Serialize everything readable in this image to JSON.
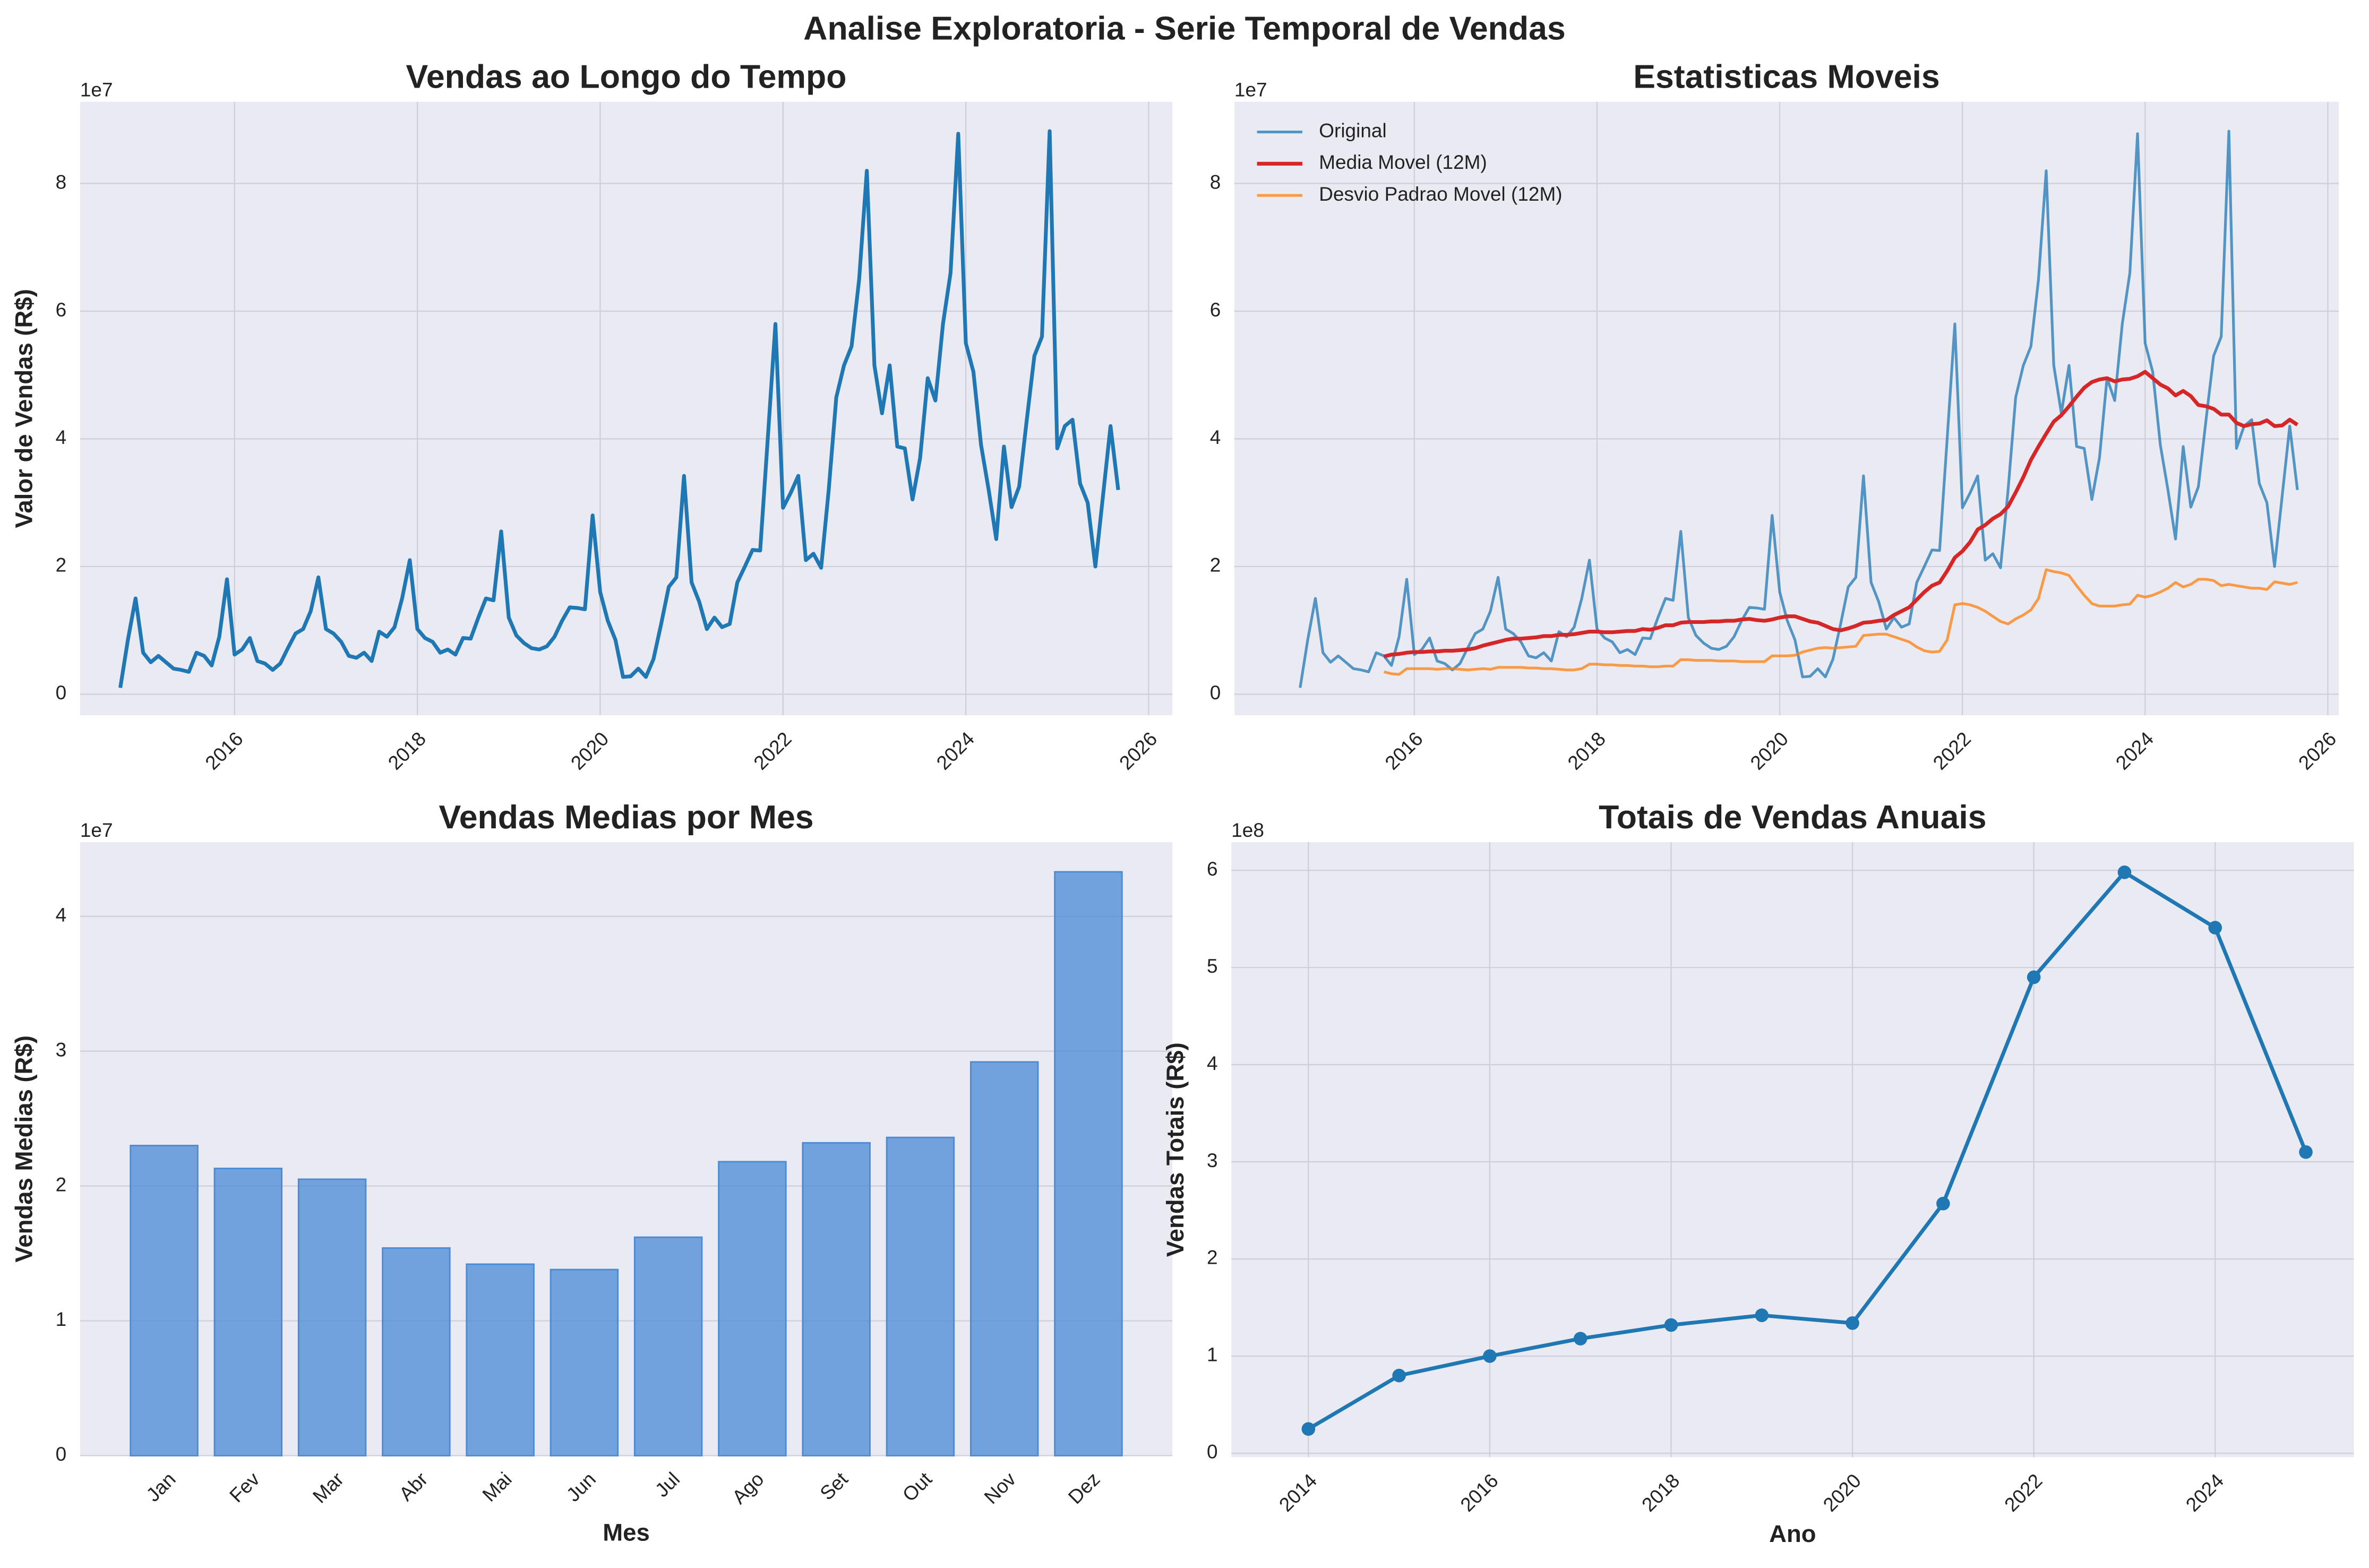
{
  "title": "Analise Exploratoria - Serie Temporal de Vendas",
  "chart_data": [
    {
      "type": "line",
      "title": "Vendas ao Longo do Tempo",
      "ylabel": "Valor de Vendas (R$)",
      "y_offset_label": "1e7",
      "x": [
        2014.75,
        2014.833,
        2014.917,
        2015,
        2015.083,
        2015.167,
        2015.25,
        2015.333,
        2015.417,
        2015.5,
        2015.583,
        2015.667,
        2015.75,
        2015.833,
        2015.917,
        2016,
        2016.083,
        2016.167,
        2016.25,
        2016.333,
        2016.417,
        2016.5,
        2016.583,
        2016.667,
        2016.75,
        2016.833,
        2016.917,
        2017,
        2017.083,
        2017.167,
        2017.25,
        2017.333,
        2017.417,
        2017.5,
        2017.583,
        2017.667,
        2017.75,
        2017.833,
        2017.917,
        2018,
        2018.083,
        2018.167,
        2018.25,
        2018.333,
        2018.417,
        2018.5,
        2018.583,
        2018.667,
        2018.75,
        2018.833,
        2018.917,
        2019,
        2019.083,
        2019.167,
        2019.25,
        2019.333,
        2019.417,
        2019.5,
        2019.583,
        2019.667,
        2019.75,
        2019.833,
        2019.917,
        2020,
        2020.083,
        2020.167,
        2020.25,
        2020.333,
        2020.417,
        2020.5,
        2020.583,
        2020.667,
        2020.75,
        2020.833,
        2020.917,
        2021,
        2021.083,
        2021.167,
        2021.25,
        2021.333,
        2021.417,
        2021.5,
        2021.583,
        2021.667,
        2021.75,
        2021.833,
        2021.917,
        2022,
        2022.083,
        2022.167,
        2022.25,
        2022.333,
        2022.417,
        2022.5,
        2022.583,
        2022.667,
        2022.75,
        2022.833,
        2022.917,
        2023,
        2023.083,
        2023.167,
        2023.25,
        2023.333,
        2023.417,
        2023.5,
        2023.583,
        2023.667,
        2023.75,
        2023.833,
        2023.917,
        2024,
        2024.083,
        2024.167,
        2024.25,
        2024.333,
        2024.417,
        2024.5,
        2024.583,
        2024.667,
        2024.75,
        2024.833,
        2024.917,
        2025,
        2025.083,
        2025.167,
        2025.25,
        2025.333,
        2025.417,
        2025.5,
        2025.583,
        2025.667
      ],
      "series": [
        {
          "name": "Vendas",
          "color": "#1f77b4",
          "values": [
            0.1,
            0.85,
            1.5,
            0.65,
            0.5,
            0.6,
            0.5,
            0.4,
            0.38,
            0.35,
            0.65,
            0.6,
            0.45,
            0.9,
            1.8,
            0.62,
            0.7,
            0.88,
            0.52,
            0.48,
            0.38,
            0.48,
            0.72,
            0.95,
            1.02,
            1.3,
            1.83,
            1.02,
            0.95,
            0.82,
            0.6,
            0.57,
            0.65,
            0.52,
            0.98,
            0.9,
            1.05,
            1.5,
            2.1,
            1.02,
            0.88,
            0.82,
            0.65,
            0.7,
            0.62,
            0.88,
            0.87,
            1.2,
            1.5,
            1.47,
            2.55,
            1.2,
            0.92,
            0.8,
            0.72,
            0.7,
            0.75,
            0.9,
            1.15,
            1.36,
            1.35,
            1.33,
            2.8,
            1.6,
            1.15,
            0.85,
            0.27,
            0.28,
            0.4,
            0.27,
            0.55,
            1.1,
            1.68,
            1.83,
            3.42,
            1.75,
            1.45,
            1.02,
            1.2,
            1.05,
            1.1,
            1.75,
            2.0,
            2.26,
            2.25,
            4.0,
            5.8,
            2.92,
            3.15,
            3.42,
            2.1,
            2.2,
            1.98,
            3.2,
            4.65,
            5.15,
            5.45,
            6.5,
            8.2,
            5.15,
            4.4,
            5.15,
            3.88,
            3.85,
            3.05,
            3.7,
            4.95,
            4.6,
            5.8,
            6.6,
            8.78,
            5.5,
            5.05,
            3.9,
            3.2,
            2.43,
            3.88,
            2.93,
            3.25,
            4.3,
            5.3,
            5.6,
            8.82,
            3.85,
            4.2,
            4.3,
            3.3,
            3.0,
            2.0,
            3.1,
            4.2,
            3.2
          ]
        }
      ],
      "xlim": [
        2014.31,
        2026.26
      ],
      "ylim": [
        -0.33,
        9.28
      ],
      "xticks": [
        2016,
        2018,
        2020,
        2022,
        2024,
        2026
      ],
      "yticks": [
        0,
        2,
        4,
        6,
        8
      ],
      "grid": true
    },
    {
      "type": "line",
      "title": "Estatisticas Moveis",
      "y_offset_label": "1e7",
      "legend": "upper left",
      "x": [
        2014.75,
        2014.833,
        2014.917,
        2015,
        2015.083,
        2015.167,
        2015.25,
        2015.333,
        2015.417,
        2015.5,
        2015.583,
        2015.667,
        2015.75,
        2015.833,
        2015.917,
        2016,
        2016.083,
        2016.167,
        2016.25,
        2016.333,
        2016.417,
        2016.5,
        2016.583,
        2016.667,
        2016.75,
        2016.833,
        2016.917,
        2017,
        2017.083,
        2017.167,
        2017.25,
        2017.333,
        2017.417,
        2017.5,
        2017.583,
        2017.667,
        2017.75,
        2017.833,
        2017.917,
        2018,
        2018.083,
        2018.167,
        2018.25,
        2018.333,
        2018.417,
        2018.5,
        2018.583,
        2018.667,
        2018.75,
        2018.833,
        2018.917,
        2019,
        2019.083,
        2019.167,
        2019.25,
        2019.333,
        2019.417,
        2019.5,
        2019.583,
        2019.667,
        2019.75,
        2019.833,
        2019.917,
        2020,
        2020.083,
        2020.167,
        2020.25,
        2020.333,
        2020.417,
        2020.5,
        2020.583,
        2020.667,
        2020.75,
        2020.833,
        2020.917,
        2021,
        2021.083,
        2021.167,
        2021.25,
        2021.333,
        2021.417,
        2021.5,
        2021.583,
        2021.667,
        2021.75,
        2021.833,
        2021.917,
        2022,
        2022.083,
        2022.167,
        2022.25,
        2022.333,
        2022.417,
        2022.5,
        2022.583,
        2022.667,
        2022.75,
        2022.833,
        2022.917,
        2023,
        2023.083,
        2023.167,
        2023.25,
        2023.333,
        2023.417,
        2023.5,
        2023.583,
        2023.667,
        2023.75,
        2023.833,
        2023.917,
        2024,
        2024.083,
        2024.167,
        2024.25,
        2024.333,
        2024.417,
        2024.5,
        2024.583,
        2024.667,
        2024.75,
        2024.833,
        2024.917,
        2025,
        2025.083,
        2025.167,
        2025.25,
        2025.333,
        2025.417,
        2025.5,
        2025.583,
        2025.667
      ],
      "series": [
        {
          "name": "Original",
          "color": "#1f77b4",
          "values": [
            0.1,
            0.85,
            1.5,
            0.65,
            0.5,
            0.6,
            0.5,
            0.4,
            0.38,
            0.35,
            0.65,
            0.6,
            0.45,
            0.9,
            1.8,
            0.62,
            0.7,
            0.88,
            0.52,
            0.48,
            0.38,
            0.48,
            0.72,
            0.95,
            1.02,
            1.3,
            1.83,
            1.02,
            0.95,
            0.82,
            0.6,
            0.57,
            0.65,
            0.52,
            0.98,
            0.9,
            1.05,
            1.5,
            2.1,
            1.02,
            0.88,
            0.82,
            0.65,
            0.7,
            0.62,
            0.88,
            0.87,
            1.2,
            1.5,
            1.47,
            2.55,
            1.2,
            0.92,
            0.8,
            0.72,
            0.7,
            0.75,
            0.9,
            1.15,
            1.36,
            1.35,
            1.33,
            2.8,
            1.6,
            1.15,
            0.85,
            0.27,
            0.28,
            0.4,
            0.27,
            0.55,
            1.1,
            1.68,
            1.83,
            3.42,
            1.75,
            1.45,
            1.02,
            1.2,
            1.05,
            1.1,
            1.75,
            2.0,
            2.26,
            2.25,
            4.0,
            5.8,
            2.92,
            3.15,
            3.42,
            2.1,
            2.2,
            1.98,
            3.2,
            4.65,
            5.15,
            5.45,
            6.5,
            8.2,
            5.15,
            4.4,
            5.15,
            3.88,
            3.85,
            3.05,
            3.7,
            4.95,
            4.6,
            5.8,
            6.6,
            8.78,
            5.5,
            5.05,
            3.9,
            3.2,
            2.43,
            3.88,
            2.93,
            3.25,
            4.3,
            5.3,
            5.6,
            8.82,
            3.85,
            4.2,
            4.3,
            3.3,
            3.0,
            2.0,
            3.1,
            4.2,
            3.2
          ]
        },
        {
          "name": "Media Movel (12M)",
          "color": "#d62728",
          "values": [
            null,
            null,
            null,
            null,
            null,
            null,
            null,
            null,
            null,
            null,
            null,
            0.59,
            0.62,
            0.63,
            0.65,
            0.66,
            0.66,
            0.67,
            0.67,
            0.68,
            0.68,
            0.69,
            0.7,
            0.72,
            0.76,
            0.79,
            0.82,
            0.85,
            0.87,
            0.87,
            0.88,
            0.89,
            0.91,
            0.91,
            0.93,
            0.93,
            0.94,
            0.96,
            0.98,
            0.98,
            0.97,
            0.97,
            0.98,
            0.99,
            0.99,
            1.02,
            1.01,
            1.04,
            1.08,
            1.08,
            1.12,
            1.13,
            1.13,
            1.13,
            1.14,
            1.14,
            1.15,
            1.15,
            1.17,
            1.18,
            1.16,
            1.15,
            1.17,
            1.2,
            1.22,
            1.22,
            1.18,
            1.14,
            1.12,
            1.07,
            1.02,
            1.0,
            1.03,
            1.07,
            1.12,
            1.13,
            1.15,
            1.16,
            1.24,
            1.3,
            1.36,
            1.48,
            1.6,
            1.7,
            1.75,
            1.93,
            2.14,
            2.24,
            2.38,
            2.58,
            2.65,
            2.75,
            2.82,
            2.94,
            3.16,
            3.4,
            3.67,
            3.88,
            4.08,
            4.27,
            4.37,
            4.51,
            4.66,
            4.8,
            4.89,
            4.93,
            4.95,
            4.9,
            4.93,
            4.94,
            4.98,
            5.05,
            4.95,
            4.85,
            4.79,
            4.68,
            4.75,
            4.67,
            4.53,
            4.51,
            4.47,
            4.38,
            4.38,
            4.25,
            4.2,
            4.23,
            4.24,
            4.29,
            4.2,
            4.21,
            4.3,
            4.22
          ]
        },
        {
          "name": "Desvio Padrao Movel (12M)",
          "color": "#ff7f0e",
          "values": [
            null,
            null,
            null,
            null,
            null,
            null,
            null,
            null,
            null,
            null,
            null,
            0.35,
            0.32,
            0.31,
            0.4,
            0.4,
            0.4,
            0.4,
            0.39,
            0.4,
            0.4,
            0.39,
            0.38,
            0.39,
            0.4,
            0.39,
            0.42,
            0.42,
            0.42,
            0.42,
            0.41,
            0.41,
            0.4,
            0.4,
            0.39,
            0.38,
            0.38,
            0.4,
            0.47,
            0.47,
            0.46,
            0.46,
            0.45,
            0.45,
            0.44,
            0.44,
            0.43,
            0.43,
            0.44,
            0.44,
            0.54,
            0.54,
            0.53,
            0.53,
            0.53,
            0.52,
            0.52,
            0.52,
            0.51,
            0.51,
            0.51,
            0.51,
            0.6,
            0.6,
            0.6,
            0.61,
            0.66,
            0.69,
            0.72,
            0.73,
            0.72,
            0.73,
            0.74,
            0.75,
            0.92,
            0.93,
            0.94,
            0.94,
            0.9,
            0.86,
            0.82,
            0.74,
            0.68,
            0.66,
            0.67,
            0.85,
            1.4,
            1.42,
            1.4,
            1.36,
            1.3,
            1.22,
            1.14,
            1.1,
            1.18,
            1.24,
            1.32,
            1.5,
            1.95,
            1.92,
            1.9,
            1.86,
            1.7,
            1.55,
            1.42,
            1.38,
            1.38,
            1.38,
            1.4,
            1.41,
            1.55,
            1.52,
            1.55,
            1.6,
            1.66,
            1.75,
            1.68,
            1.72,
            1.8,
            1.8,
            1.78,
            1.7,
            1.72,
            1.7,
            1.68,
            1.66,
            1.66,
            1.64,
            1.76,
            1.74,
            1.72,
            1.75
          ]
        }
      ],
      "xlim": [
        2014.03,
        2026.12
      ],
      "ylim": [
        -0.33,
        9.28
      ],
      "xticks": [
        2016,
        2018,
        2020,
        2022,
        2024,
        2026
      ],
      "yticks": [
        0,
        2,
        4,
        6,
        8
      ],
      "grid": true
    },
    {
      "type": "bar",
      "title": "Vendas Medias por Mes",
      "xlabel": "Mes",
      "ylabel": "Vendas Medias (R$)",
      "y_offset_label": "1e7",
      "categories": [
        "Jan",
        "Fev",
        "Mar",
        "Abr",
        "Mai",
        "Jun",
        "Jul",
        "Ago",
        "Set",
        "Out",
        "Nov",
        "Dez"
      ],
      "values": [
        2.3,
        2.13,
        2.05,
        1.54,
        1.42,
        1.38,
        1.62,
        2.18,
        2.32,
        2.36,
        2.92,
        4.33
      ],
      "color": "#4a8ad6",
      "ylim": [
        0,
        4.55
      ],
      "yticks": [
        0,
        1,
        2,
        3,
        4
      ],
      "grid": true
    },
    {
      "type": "line",
      "title": "Totais de Vendas Anuais",
      "xlabel": "Ano",
      "ylabel": "Vendas Totais (R$)",
      "y_offset_label": "1e8",
      "marker": "o",
      "x": [
        2014,
        2015,
        2016,
        2017,
        2018,
        2019,
        2020,
        2021,
        2022,
        2023,
        2024,
        2025
      ],
      "series": [
        {
          "name": "Totais",
          "color": "#1f77b4",
          "values": [
            0.25,
            0.8,
            1.0,
            1.18,
            1.32,
            1.42,
            1.34,
            2.57,
            4.9,
            5.98,
            5.41,
            3.1
          ]
        }
      ],
      "xlim": [
        2013.15,
        2025.53
      ],
      "ylim": [
        -0.04,
        6.29
      ],
      "xticks": [
        2014,
        2016,
        2018,
        2020,
        2022,
        2024
      ],
      "yticks": [
        0,
        1,
        2,
        3,
        4,
        5,
        6
      ],
      "grid": true
    }
  ]
}
